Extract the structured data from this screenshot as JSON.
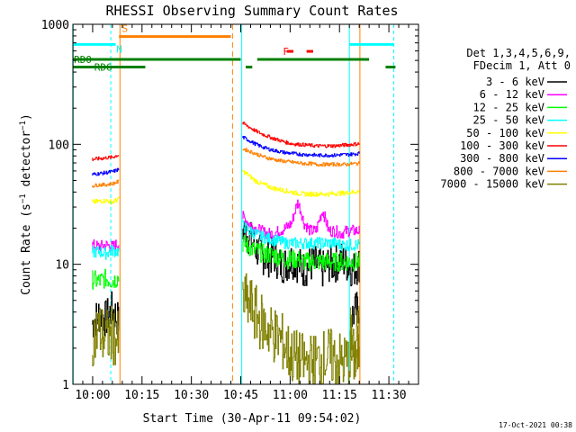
{
  "chart_data": {
    "type": "line",
    "title": "RHESSI Observing Summary Count Rates",
    "xlabel": "Start Time (30-Apr-11 09:54:02)",
    "ylabel": "Count Rate (s⁻¹ detector⁻¹)",
    "ylabel_parts": [
      "Count Rate (s",
      "−1",
      " detector",
      "−1",
      ")"
    ],
    "yscale": "log",
    "ylim": [
      1,
      1000
    ],
    "xlim_minutes_after_0954": [
      0,
      105
    ],
    "x_ticks": [
      {
        "label": "10:00",
        "minute": 6
      },
      {
        "label": "10:15",
        "minute": 21
      },
      {
        "label": "10:30",
        "minute": 36
      },
      {
        "label": "10:45",
        "minute": 51
      },
      {
        "label": "11:00",
        "minute": 66
      },
      {
        "label": "11:15",
        "minute": 81
      },
      {
        "label": "11:30",
        "minute": 96
      }
    ],
    "y_ticks": [
      {
        "label": "1",
        "value": 1
      },
      {
        "label": "10",
        "value": 10
      },
      {
        "label": "100",
        "value": 100
      },
      {
        "label": "1000",
        "value": 1000
      }
    ],
    "legend_header": [
      "Det 1,3,4,5,6,9,",
      "FDecim 1, Att 0"
    ],
    "legend_position": "right",
    "series": [
      {
        "name": "3 - 6 keV",
        "color": "#000000",
        "seg1": [
          3.2,
          3.8,
          3.5,
          4.2,
          3.3
        ],
        "seg2": [
          20,
          17,
          14,
          12,
          11,
          12,
          10,
          10,
          11,
          10,
          9,
          10,
          10,
          9,
          10,
          10,
          11,
          10,
          9,
          10
        ],
        "peak": [
          14,
          15,
          12
        ],
        "seg3": [
          3.5,
          4.5
        ]
      },
      {
        "name": "6 - 12 keV",
        "color": "#ff00ff",
        "seg1": [
          14.5,
          14,
          14.5,
          14,
          15
        ],
        "seg2": [
          25,
          22,
          20,
          19,
          18,
          18,
          19,
          20,
          22,
          33,
          22,
          19,
          19,
          28,
          19,
          19,
          18,
          19,
          19,
          19
        ],
        "peak": [],
        "seg3": []
      },
      {
        "name": "12 - 25 keV",
        "color": "#00ff00",
        "seg1": [
          7.5,
          7.2,
          7.6,
          7.3,
          7.8
        ],
        "seg2": [
          15,
          14,
          13,
          12.5,
          12,
          12,
          11.5,
          11,
          11,
          11,
          10.5,
          10.5,
          10.5,
          10.5,
          10.5,
          10.5,
          10.5,
          10.5,
          10.5,
          10.5
        ],
        "peak": [],
        "seg3": []
      },
      {
        "name": "25 - 50 keV",
        "color": "#00ffff",
        "seg1": [
          12.5,
          12.8,
          12.3,
          13,
          12.8
        ],
        "seg2": [
          21,
          19,
          18,
          17,
          16.5,
          16,
          15.5,
          15,
          15,
          15,
          15,
          15,
          15,
          15,
          15,
          15,
          14.5,
          14.5,
          14.5,
          14.5
        ],
        "peak": [],
        "seg3": []
      },
      {
        "name": "50 - 100 keV",
        "color": "#ffff00",
        "seg1": [
          33,
          33.5,
          34,
          33,
          35
        ],
        "seg2": [
          60,
          55,
          50,
          47,
          45,
          43,
          42,
          41,
          40,
          39,
          38.5,
          38.5,
          38.5,
          38.5,
          38.5,
          39,
          39,
          39.5,
          40,
          40.5
        ],
        "peak": [],
        "seg3": []
      },
      {
        "name": "100 - 300 keV",
        "color": "#ff0000",
        "seg1": [
          75,
          76,
          77,
          78,
          82
        ],
        "seg2": [
          150,
          140,
          130,
          123,
          117,
          112,
          108,
          104,
          101,
          100,
          99,
          98,
          97,
          97,
          97,
          97,
          98,
          99,
          100,
          101
        ],
        "peak": [],
        "seg3": []
      },
      {
        "name": "300 - 800 keV",
        "color": "#0000ff",
        "seg1": [
          56,
          57,
          58,
          59,
          62
        ],
        "seg2": [
          115,
          108,
          101,
          96,
          92,
          89,
          87,
          85,
          84,
          83,
          82,
          82,
          81,
          81,
          81,
          81,
          82,
          82,
          83,
          84
        ],
        "peak": [],
        "seg3": []
      },
      {
        "name": "800 - 7000 keV",
        "color": "#ff8000",
        "seg1": [
          45,
          46,
          46,
          47,
          49
        ],
        "seg2": [
          92,
          88,
          84,
          80,
          77,
          75,
          73,
          72,
          71,
          70,
          69,
          69,
          68,
          68,
          68,
          68,
          68,
          68,
          69,
          69
        ],
        "peak": [],
        "seg3": []
      },
      {
        "name": "7000 - 15000 keV",
        "color": "#808000",
        "seg1": [
          2.5,
          2.8,
          2.4,
          2.6,
          2.2
        ],
        "seg2": [
          5,
          4.5,
          3.5,
          3,
          2.6,
          2.3,
          1.8,
          1.6,
          1.5,
          1.5,
          1.6,
          1.7,
          1.6,
          1.5,
          1.7,
          1.6
        ],
        "peak": [],
        "seg3": [
          2.5,
          2.7
        ]
      }
    ],
    "flag_bars": [
      {
        "label": "S",
        "color": "#ff8000",
        "start_minute": 14,
        "end_minute": 48,
        "y_value": 790
      },
      {
        "label": "N",
        "color": "#00ffff",
        "start_minute": 0,
        "end_minute": 13,
        "y_value": 680
      },
      {
        "label": "RD0",
        "color": "#008000",
        "start_minute": 0,
        "end_minute": 51,
        "y_value": 510
      },
      {
        "label": "RD6",
        "color": "#008000",
        "start_minute": 0,
        "end_minute": 22,
        "y_value": 440
      },
      {
        "label": "F",
        "color": "#ff0000",
        "start_minute": 65,
        "end_minute": 67,
        "y_value": 595
      }
    ],
    "timestamp": "17-Oct-2021 00:38"
  }
}
